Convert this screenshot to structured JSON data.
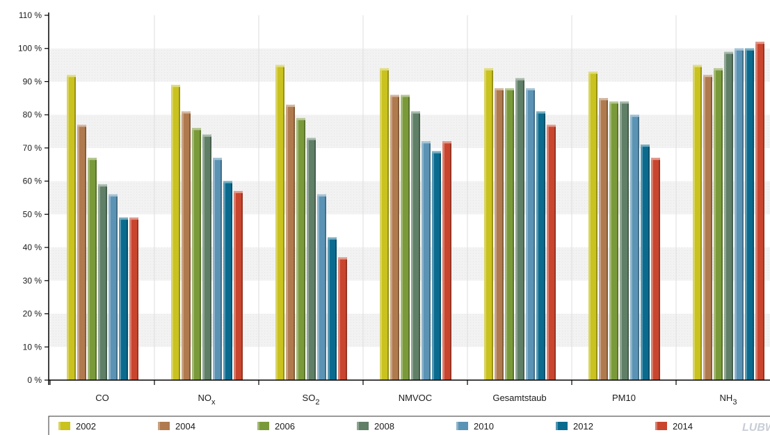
{
  "chart_data": {
    "type": "bar",
    "categories": [
      {
        "main": "CO",
        "sub": ""
      },
      {
        "main": "NO",
        "sub": "x"
      },
      {
        "main": "SO",
        "sub": "2"
      },
      {
        "main": "NMVOC",
        "sub": ""
      },
      {
        "main": "Gesamtstaub",
        "sub": ""
      },
      {
        "main": "PM10",
        "sub": ""
      },
      {
        "main": "NH",
        "sub": "3"
      }
    ],
    "series": [
      {
        "name": "2002",
        "color": "#c9c21f",
        "values": [
          92,
          89,
          95,
          94,
          94,
          93,
          95
        ]
      },
      {
        "name": "2004",
        "color": "#b07a4e",
        "values": [
          77,
          81,
          83,
          86,
          88,
          85,
          92
        ]
      },
      {
        "name": "2006",
        "color": "#7a9a3a",
        "values": [
          67,
          76,
          79,
          86,
          88,
          84,
          94
        ]
      },
      {
        "name": "2008",
        "color": "#5f7f66",
        "values": [
          59,
          74,
          73,
          81,
          91,
          84,
          99
        ]
      },
      {
        "name": "2010",
        "color": "#5b93b5",
        "values": [
          56,
          67,
          56,
          72,
          88,
          80,
          100
        ]
      },
      {
        "name": "2012",
        "color": "#0a6b8f",
        "values": [
          49,
          60,
          43,
          69,
          81,
          71,
          100
        ]
      },
      {
        "name": "2014",
        "color": "#c9452e",
        "values": [
          49,
          57,
          37,
          72,
          77,
          67,
          102
        ]
      }
    ],
    "yticks": [
      "0 %",
      "10 %",
      "20 %",
      "30 %",
      "40 %",
      "50 %",
      "60 %",
      "70 %",
      "80 %",
      "90 %",
      "100 %",
      "110 %"
    ],
    "ylim": [
      0,
      110
    ],
    "grid": "alternating bands",
    "legend": "bottom"
  },
  "watermark": "LUBW"
}
